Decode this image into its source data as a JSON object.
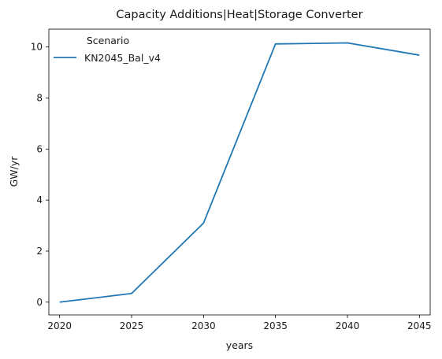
{
  "chart_data": {
    "type": "line",
    "title": "Capacity Additions|Heat|Storage Converter",
    "xlabel": "years",
    "ylabel": "GW/yr",
    "x": [
      2020,
      2025,
      2030,
      2035,
      2040,
      2045
    ],
    "xticks": [
      "2020",
      "2025",
      "2030",
      "2035",
      "2040",
      "2045"
    ],
    "yticks": [
      "0",
      "2",
      "4",
      "6",
      "8",
      "10"
    ],
    "xlim": [
      2019.25,
      2045.75
    ],
    "ylim": [
      -0.5,
      10.7
    ],
    "grid": false,
    "legend": {
      "title": "Scenario",
      "placement": "top-left"
    },
    "series": [
      {
        "name": "KN2045_Bal_v4",
        "color": "#1f77b4",
        "values": [
          0.0,
          0.34,
          3.1,
          10.12,
          10.16,
          9.68
        ]
      }
    ]
  }
}
